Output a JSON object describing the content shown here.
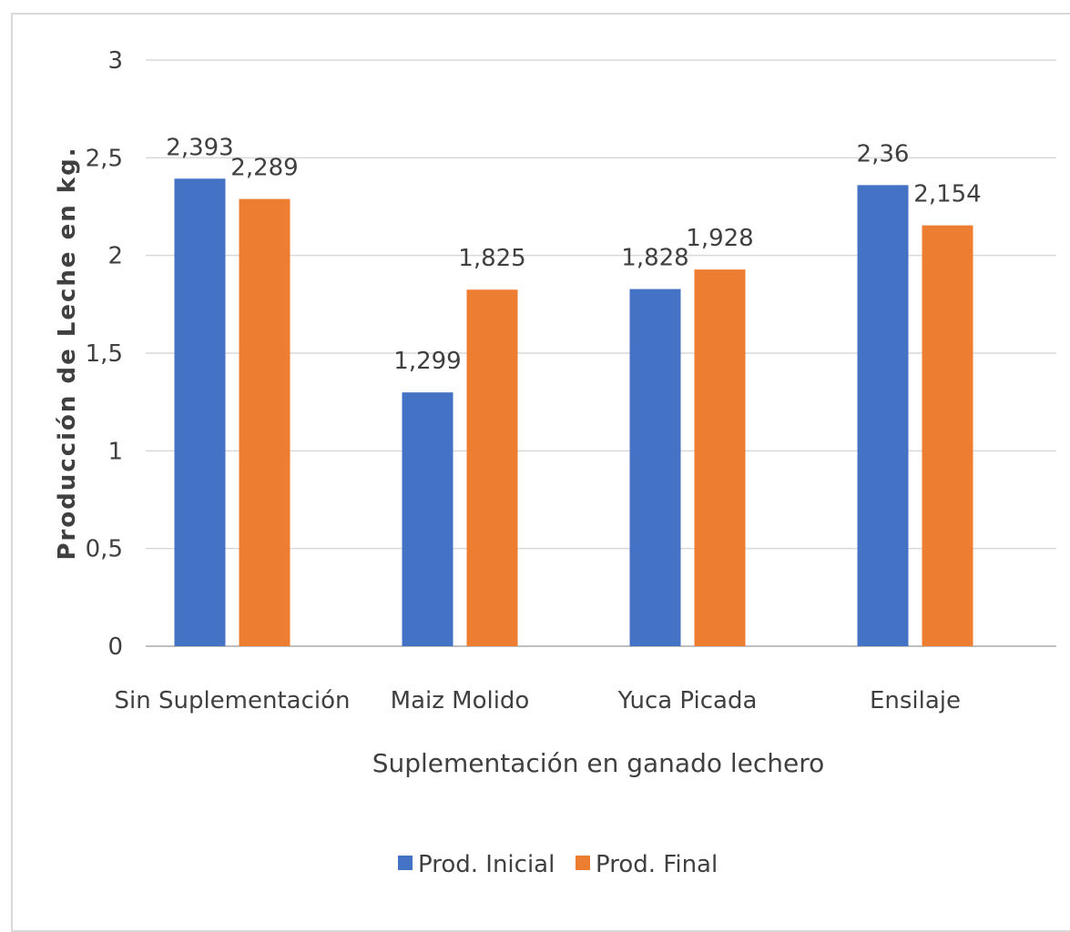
{
  "chart_data": {
    "type": "bar",
    "title": "",
    "xlabel": "Suplementación en ganado lechero",
    "ylabel": "Producción de Leche en kg.",
    "categories": [
      "Sin Suplementación",
      "Maiz Molido",
      "Yuca Picada",
      "Ensilaje"
    ],
    "series": [
      {
        "name": "Prod. Inicial",
        "color": "#4472c4",
        "values": [
          2.393,
          1.299,
          1.828,
          2.36
        ],
        "labels": [
          "2,393",
          "1,299",
          "1,828",
          "2,36"
        ]
      },
      {
        "name": "Prod. Final",
        "color": "#ed7d31",
        "values": [
          2.289,
          1.825,
          1.928,
          2.154
        ],
        "labels": [
          "2,289",
          "1,825",
          "1,928",
          "2,154"
        ]
      }
    ],
    "ylim": [
      0,
      3
    ],
    "yticks": [
      0,
      0.5,
      1,
      1.5,
      2,
      2.5,
      3
    ],
    "ytick_labels": [
      "0",
      "0,5",
      "1",
      "1,5",
      "2",
      "2,5",
      "3"
    ],
    "grid": true,
    "legend": "bottom"
  }
}
